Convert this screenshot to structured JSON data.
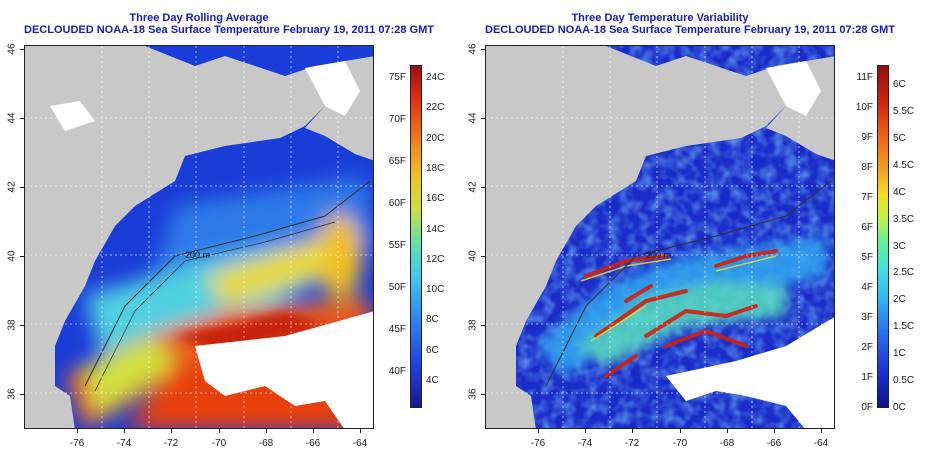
{
  "left": {
    "title_line1": "Three Day Rolling Average",
    "title_line2": "DECLOUDED NOAA-18 Sea Surface Temperature February 19, 2011 07:28 GMT",
    "colorbar_f": [
      "40F",
      "45F",
      "50F",
      "55F",
      "60F",
      "65F",
      "70F",
      "75F"
    ],
    "colorbar_c": [
      "4C",
      "6C",
      "8C",
      "10C",
      "12C",
      "14C",
      "16C",
      "18C",
      "20C",
      "22C",
      "24C"
    ],
    "contour_label": "200 m"
  },
  "right": {
    "title_line1": "Three Day Temperature Variability",
    "title_line2": "DECLOUDED NOAA-18 Sea Surface Temperature February 19, 2011 07:28 GMT",
    "colorbar_f": [
      "0F",
      "1F",
      "2F",
      "3F",
      "4F",
      "5F",
      "6F",
      "7F",
      "8F",
      "9F",
      "10F",
      "11F"
    ],
    "colorbar_c": [
      "0C",
      "0.5C",
      "1C",
      "1.5C",
      "2C",
      "2.5C",
      "3C",
      "3.5C",
      "4C",
      "4.5C",
      "5C",
      "5.5C",
      "6C"
    ],
    "contour_label": "200 m"
  },
  "axes": {
    "lon_ticks": [
      "-76",
      "-74",
      "-72",
      "-70",
      "-68",
      "-66",
      "-64"
    ],
    "lat_ticks": [
      "36",
      "38",
      "40",
      "42",
      "44",
      "46"
    ]
  },
  "colors": {
    "land": "#c8c8c8",
    "title": "#1a1ab4"
  }
}
